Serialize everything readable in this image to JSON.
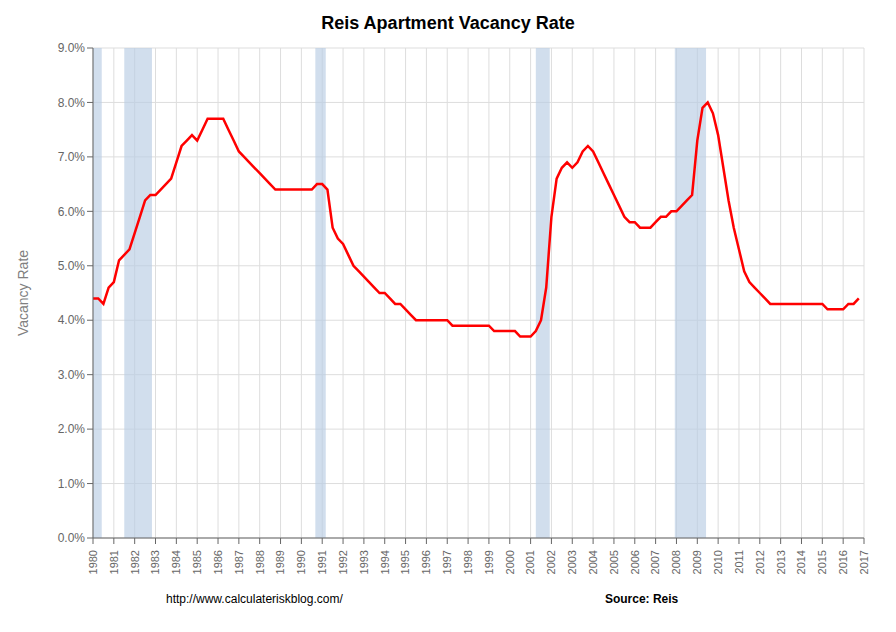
{
  "chart_data": {
    "type": "line",
    "title": "Reis Apartment Vacancy Rate",
    "ylabel": "Vacancy Rate",
    "annotations": [
      "http://www.calculateriskblog.com/",
      "Source: Reis"
    ],
    "grid": true,
    "xlim": [
      1980,
      2017
    ],
    "xticks": [
      1980,
      1981,
      1982,
      1983,
      1984,
      1985,
      1986,
      1987,
      1988,
      1989,
      1990,
      1991,
      1992,
      1993,
      1994,
      1995,
      1996,
      1997,
      1998,
      1999,
      2000,
      2001,
      2002,
      2003,
      2004,
      2005,
      2006,
      2007,
      2008,
      2009,
      2010,
      2011,
      2012,
      2013,
      2014,
      2015,
      2016,
      2017
    ],
    "ylim": [
      0.0,
      0.09
    ],
    "yticks": [
      {
        "value": 0.0,
        "label": "0.0%"
      },
      {
        "value": 0.01,
        "label": "1.0%"
      },
      {
        "value": 0.02,
        "label": "2.0%"
      },
      {
        "value": 0.03,
        "label": "3.0%"
      },
      {
        "value": 0.04,
        "label": "4.0%"
      },
      {
        "value": 0.05,
        "label": "5.0%"
      },
      {
        "value": 0.06,
        "label": "6.0%"
      },
      {
        "value": 0.07,
        "label": "7.0%"
      },
      {
        "value": 0.08,
        "label": "8.0%"
      },
      {
        "value": 0.09,
        "label": "9.0%"
      }
    ],
    "recessions": {
      "color": "#b8cce4",
      "ranges": [
        [
          1980.0,
          1980.42
        ],
        [
          1981.5,
          1982.83
        ],
        [
          1990.67,
          1991.17
        ],
        [
          2001.25,
          2001.92
        ],
        [
          2007.92,
          2009.42
        ]
      ]
    },
    "color": "#ff0000",
    "x": [
      1980.0,
      1980.25,
      1980.5,
      1980.75,
      1981.0,
      1981.25,
      1981.5,
      1981.75,
      1982.0,
      1982.25,
      1982.5,
      1982.75,
      1983.0,
      1983.25,
      1983.5,
      1983.75,
      1984.0,
      1984.25,
      1984.5,
      1984.75,
      1985.0,
      1985.25,
      1985.5,
      1985.75,
      1986.0,
      1986.25,
      1986.5,
      1986.75,
      1987.0,
      1987.25,
      1987.5,
      1987.75,
      1988.0,
      1988.25,
      1988.5,
      1988.75,
      1989.0,
      1989.25,
      1989.5,
      1989.75,
      1990.0,
      1990.25,
      1990.5,
      1990.75,
      1991.0,
      1991.25,
      1991.5,
      1991.75,
      1992.0,
      1992.25,
      1992.5,
      1992.75,
      1993.0,
      1993.25,
      1993.5,
      1993.75,
      1994.0,
      1994.25,
      1994.5,
      1994.75,
      1995.0,
      1995.25,
      1995.5,
      1995.75,
      1996.0,
      1996.25,
      1996.5,
      1996.75,
      1997.0,
      1997.25,
      1997.5,
      1997.75,
      1998.0,
      1998.25,
      1998.5,
      1998.75,
      1999.0,
      1999.25,
      1999.5,
      1999.75,
      2000.0,
      2000.25,
      2000.5,
      2000.75,
      2001.0,
      2001.25,
      2001.5,
      2001.75,
      2002.0,
      2002.25,
      2002.5,
      2002.75,
      2003.0,
      2003.25,
      2003.5,
      2003.75,
      2004.0,
      2004.25,
      2004.5,
      2004.75,
      2005.0,
      2005.25,
      2005.5,
      2005.75,
      2006.0,
      2006.25,
      2006.5,
      2006.75,
      2007.0,
      2007.25,
      2007.5,
      2007.75,
      2008.0,
      2008.25,
      2008.5,
      2008.75,
      2009.0,
      2009.25,
      2009.5,
      2009.75,
      2010.0,
      2010.25,
      2010.5,
      2010.75,
      2011.0,
      2011.25,
      2011.5,
      2011.75,
      2012.0,
      2012.25,
      2012.5,
      2012.75,
      2013.0,
      2013.25,
      2013.5,
      2013.75,
      2014.0,
      2014.25,
      2014.5,
      2014.75,
      2015.0,
      2015.25,
      2015.5,
      2015.75,
      2016.0,
      2016.25,
      2016.5,
      2016.75
    ],
    "values": [
      0.044,
      0.044,
      0.043,
      0.046,
      0.047,
      0.051,
      0.052,
      0.053,
      0.056,
      0.059,
      0.062,
      0.063,
      0.063,
      0.064,
      0.065,
      0.066,
      0.069,
      0.072,
      0.073,
      0.074,
      0.073,
      0.075,
      0.077,
      0.077,
      0.077,
      0.077,
      0.075,
      0.073,
      0.071,
      0.07,
      0.069,
      0.068,
      0.067,
      0.066,
      0.065,
      0.064,
      0.064,
      0.064,
      0.064,
      0.064,
      0.064,
      0.064,
      0.064,
      0.065,
      0.065,
      0.064,
      0.057,
      0.055,
      0.054,
      0.052,
      0.05,
      0.049,
      0.048,
      0.047,
      0.046,
      0.045,
      0.045,
      0.044,
      0.043,
      0.043,
      0.042,
      0.041,
      0.04,
      0.04,
      0.04,
      0.04,
      0.04,
      0.04,
      0.04,
      0.039,
      0.039,
      0.039,
      0.039,
      0.039,
      0.039,
      0.039,
      0.039,
      0.038,
      0.038,
      0.038,
      0.038,
      0.038,
      0.037,
      0.037,
      0.037,
      0.038,
      0.04,
      0.046,
      0.059,
      0.066,
      0.068,
      0.069,
      0.068,
      0.069,
      0.071,
      0.072,
      0.071,
      0.069,
      0.067,
      0.065,
      0.063,
      0.061,
      0.059,
      0.058,
      0.058,
      0.057,
      0.057,
      0.057,
      0.058,
      0.059,
      0.059,
      0.06,
      0.06,
      0.061,
      0.062,
      0.063,
      0.073,
      0.079,
      0.08,
      0.078,
      0.074,
      0.068,
      0.062,
      0.057,
      0.053,
      0.049,
      0.047,
      0.046,
      0.045,
      0.044,
      0.043,
      0.043,
      0.043,
      0.043,
      0.043,
      0.043,
      0.043,
      0.043,
      0.043,
      0.043,
      0.043,
      0.042,
      0.042,
      0.042,
      0.042,
      0.043,
      0.043,
      0.044
    ]
  }
}
